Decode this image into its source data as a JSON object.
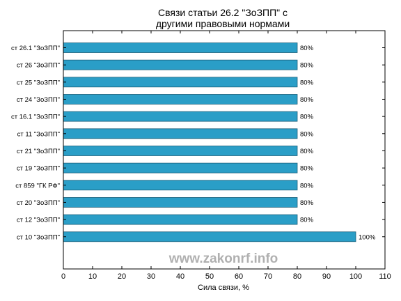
{
  "chart_data": {
    "type": "bar",
    "orientation": "horizontal",
    "title_lines": [
      "Связи статьи 26.2 \"ЗоЗПП\" с",
      "другими правовыми нормами"
    ],
    "categories": [
      "ст 26.1 \"ЗоЗПП\"",
      "ст 26 \"ЗоЗПП\"",
      "ст 25 \"ЗоЗПП\"",
      "ст 24 \"ЗоЗПП\"",
      "ст 16.1 \"ЗоЗПП\"",
      "ст 11 \"ЗоЗПП\"",
      "ст 21 \"ЗоЗПП\"",
      "ст 19 \"ЗоЗПП\"",
      "ст 859 \"ГК РФ\"",
      "ст 20 \"ЗоЗПП\"",
      "ст 12 \"ЗоЗПП\"",
      "ст 10 \"ЗоЗПП\""
    ],
    "values": [
      80,
      80,
      80,
      80,
      80,
      80,
      80,
      80,
      80,
      80,
      80,
      100
    ],
    "data_labels": [
      "80%",
      "80%",
      "80%",
      "80%",
      "80%",
      "80%",
      "80%",
      "80%",
      "80%",
      "80%",
      "80%",
      "100%"
    ],
    "xlabel": "Сила связи, %",
    "xlim": [
      0,
      110
    ],
    "xticks": [
      0,
      10,
      20,
      30,
      40,
      50,
      60,
      70,
      80,
      90,
      100,
      110
    ],
    "grid": false,
    "colors": {
      "bar_fill": "#2a9ec7",
      "bar_stroke": "#1a5f7a",
      "watermark": "#b0b0b0"
    }
  },
  "watermark": "www.zakonrf.info"
}
